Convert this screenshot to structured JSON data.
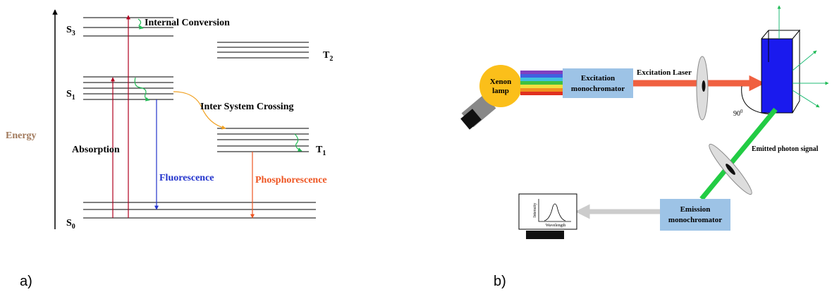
{
  "panel_a": {
    "caption": "a)",
    "axis_label": "Energy",
    "states": [
      {
        "main": "S",
        "sub": "3"
      },
      {
        "main": "S",
        "sub": "1"
      },
      {
        "main": "S",
        "sub": "0"
      },
      {
        "main": "T",
        "sub": "2"
      },
      {
        "main": "T",
        "sub": "1"
      }
    ],
    "labels": {
      "internal_conversion": "Internal Conversion",
      "inter_system_crossing": "Inter System Crossing",
      "absorption": "Absorption",
      "fluorescence": "Fluorescence",
      "phosphorescence": "Phosphorescence"
    }
  },
  "panel_b": {
    "caption": "b)",
    "lamp": [
      "Xenon",
      "lamp"
    ],
    "excitation_box": [
      "Excitation",
      "monochromator"
    ],
    "excitation_laser": "Excitation Laser",
    "angle": {
      "main": "90",
      "sup": "0"
    },
    "emitted_signal": "Emitted photon signal",
    "emission_box": [
      "Emission",
      "monochromator"
    ],
    "monitor": {
      "y_label": "Intensity",
      "x_label": "Wavelength"
    }
  }
}
